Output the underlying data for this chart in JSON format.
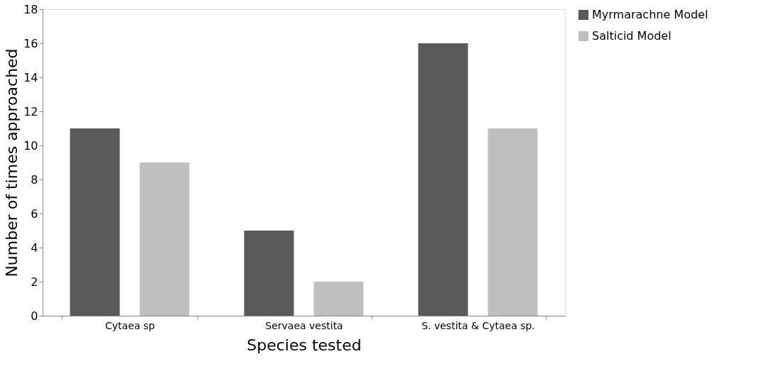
{
  "chart_data": {
    "type": "bar",
    "categories": [
      "Cytaea sp",
      "Servaea vestita",
      "S. vestita & Cytaea sp."
    ],
    "xlabel": "Species tested",
    "ylabel": "Number of times approached",
    "series": [
      {
        "name": "Myrmarachne Model",
        "color": "#595959",
        "values": [
          11,
          5,
          16
        ]
      },
      {
        "name": "Salticid Model",
        "color": "#bfbfbf",
        "values": [
          9,
          2,
          11
        ]
      }
    ],
    "ylim": [
      0,
      18
    ],
    "yticks": [
      0,
      2,
      4,
      6,
      8,
      10,
      12,
      14,
      16,
      18
    ],
    "grid": false,
    "legend": "right"
  }
}
